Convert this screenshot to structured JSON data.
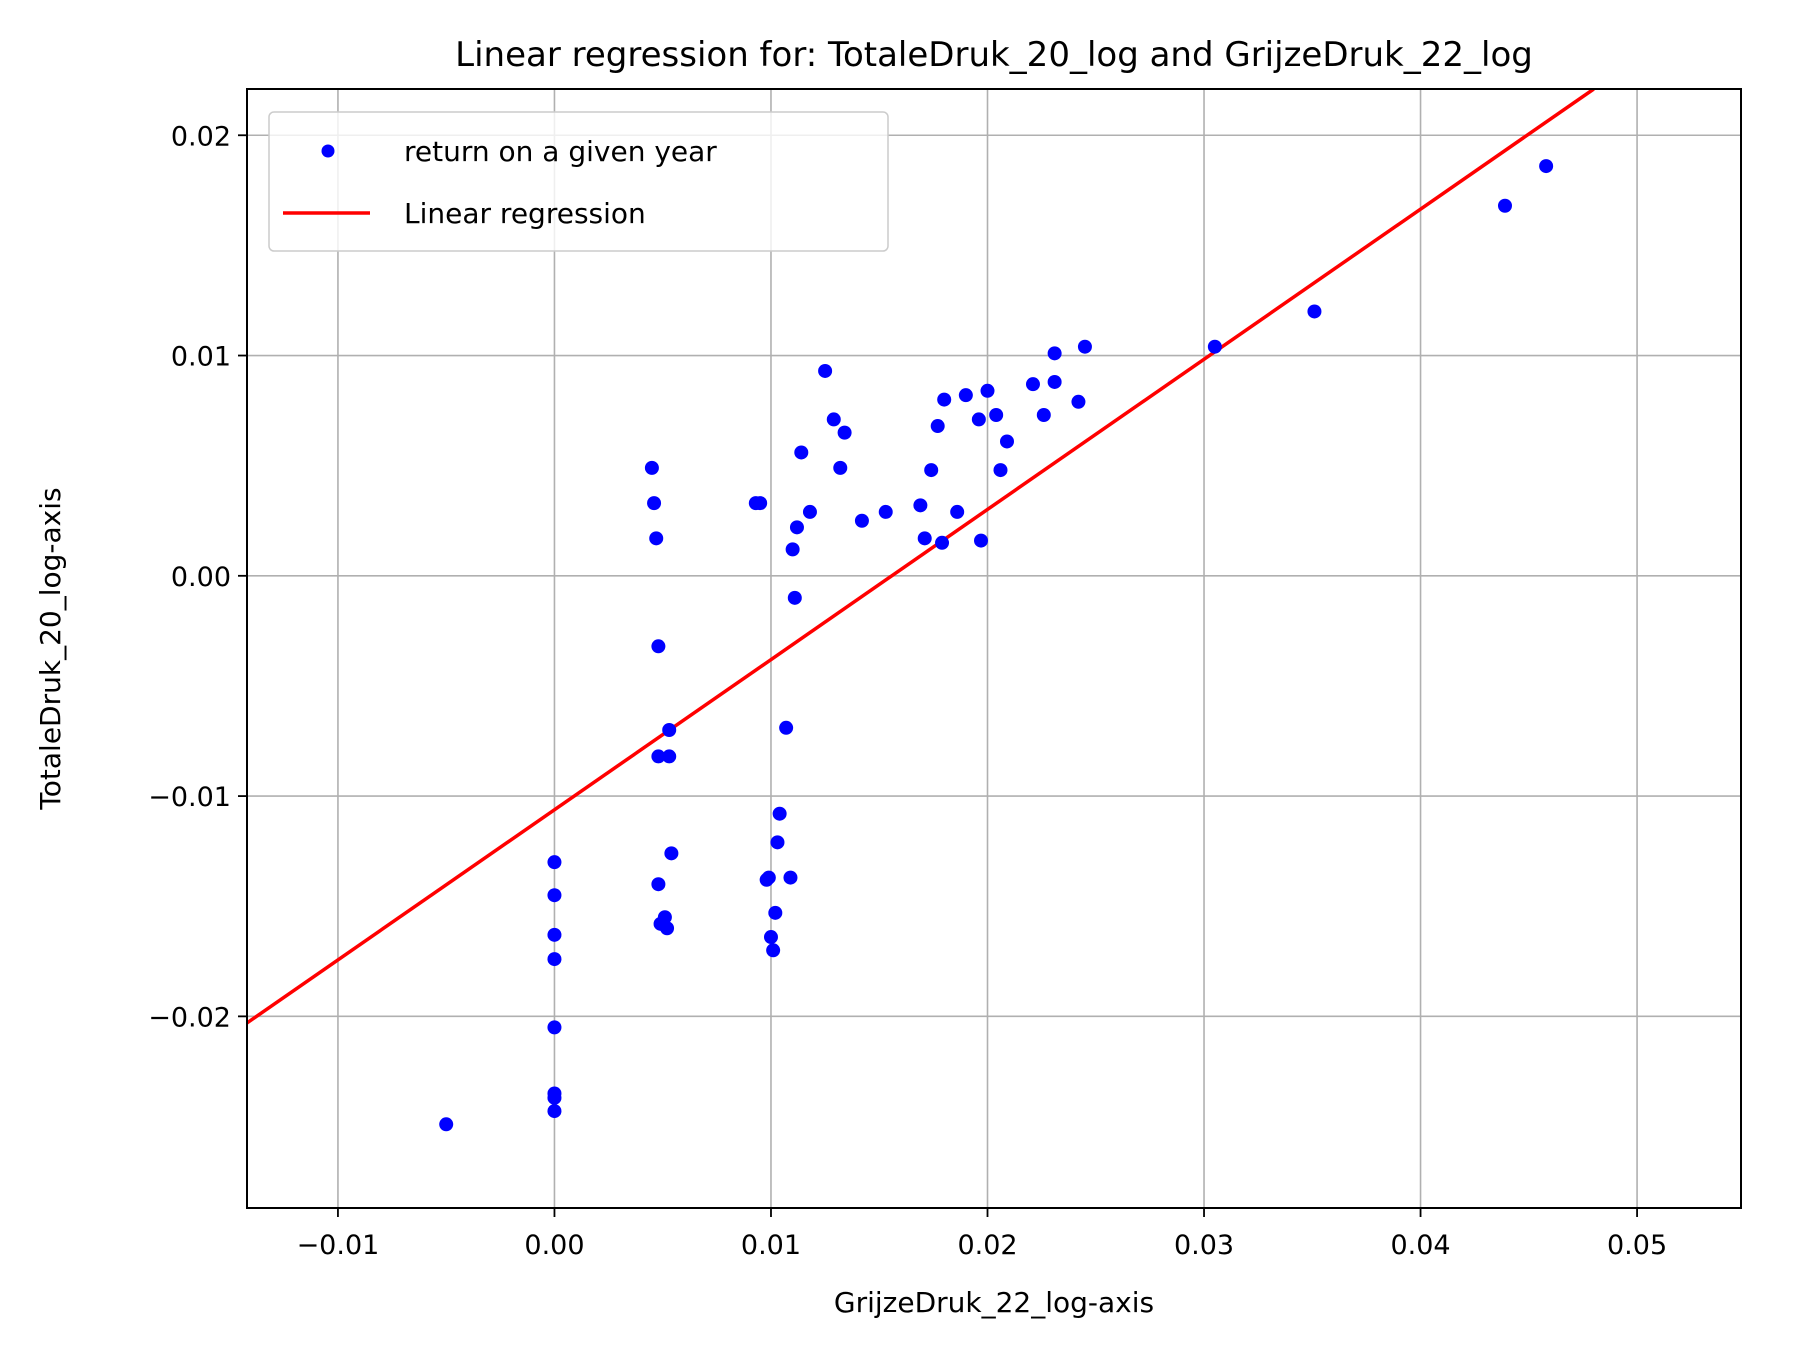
{
  "chart_data": {
    "type": "scatter",
    "title": "Linear regression for: TotaleDruk_20_log and GrijzeDruk_22_log",
    "xlabel": "GrijzeDruk_22_log-axis",
    "ylabel": "TotaleDruk_20_log-axis",
    "xlim": [
      -0.0142,
      0.0548
    ],
    "ylim": [
      -0.0287,
      0.0221
    ],
    "xticks": [
      -0.01,
      0.0,
      0.01,
      0.02,
      0.03,
      0.04,
      0.05
    ],
    "xtick_labels": [
      "−0.01",
      "0.00",
      "0.01",
      "0.02",
      "0.03",
      "0.04",
      "0.05"
    ],
    "yticks": [
      -0.02,
      -0.01,
      0.0,
      0.01,
      0.02
    ],
    "ytick_labels": [
      "−0.02",
      "−0.01",
      "0.00",
      "0.01",
      "0.02"
    ],
    "grid": true,
    "legend_position": "top-left",
    "series": [
      {
        "name": "return on a given year",
        "kind": "scatter",
        "color": "#0000ff",
        "points": [
          [
            -0.005,
            -0.0249
          ],
          [
            0.0,
            -0.013
          ],
          [
            0.0,
            -0.0145
          ],
          [
            0.0,
            -0.0163
          ],
          [
            0.0,
            -0.0174
          ],
          [
            0.0,
            -0.0205
          ],
          [
            0.0,
            -0.0235
          ],
          [
            0.0,
            -0.0237
          ],
          [
            0.0,
            -0.0243
          ],
          [
            0.0045,
            0.0049
          ],
          [
            0.0046,
            0.0033
          ],
          [
            0.0047,
            0.0017
          ],
          [
            0.0048,
            -0.0032
          ],
          [
            0.0048,
            -0.0082
          ],
          [
            0.0048,
            -0.014
          ],
          [
            0.0049,
            -0.0158
          ],
          [
            0.0051,
            -0.0155
          ],
          [
            0.0052,
            -0.016
          ],
          [
            0.0053,
            -0.007
          ],
          [
            0.0053,
            -0.0082
          ],
          [
            0.0054,
            -0.0126
          ],
          [
            0.0093,
            0.0033
          ],
          [
            0.0095,
            0.0033
          ],
          [
            0.0098,
            -0.0138
          ],
          [
            0.0099,
            -0.0137
          ],
          [
            0.01,
            -0.0164
          ],
          [
            0.0101,
            -0.017
          ],
          [
            0.0102,
            -0.0153
          ],
          [
            0.0103,
            -0.0121
          ],
          [
            0.0104,
            -0.0108
          ],
          [
            0.0107,
            -0.0069
          ],
          [
            0.0109,
            -0.0137
          ],
          [
            0.011,
            0.0012
          ],
          [
            0.0111,
            -0.001
          ],
          [
            0.0112,
            0.0022
          ],
          [
            0.0114,
            0.0056
          ],
          [
            0.0118,
            0.0029
          ],
          [
            0.0125,
            0.0093
          ],
          [
            0.0129,
            0.0071
          ],
          [
            0.0132,
            0.0049
          ],
          [
            0.0134,
            0.0065
          ],
          [
            0.0142,
            0.0025
          ],
          [
            0.0153,
            0.0029
          ],
          [
            0.0169,
            0.0032
          ],
          [
            0.0171,
            0.0017
          ],
          [
            0.0174,
            0.0048
          ],
          [
            0.0177,
            0.0068
          ],
          [
            0.0179,
            0.0015
          ],
          [
            0.018,
            0.008
          ],
          [
            0.0186,
            0.0029
          ],
          [
            0.019,
            0.0082
          ],
          [
            0.0196,
            0.0071
          ],
          [
            0.0197,
            0.0016
          ],
          [
            0.02,
            0.0084
          ],
          [
            0.0204,
            0.0073
          ],
          [
            0.0206,
            0.0048
          ],
          [
            0.0209,
            0.0061
          ],
          [
            0.0221,
            0.0087
          ],
          [
            0.0226,
            0.0073
          ],
          [
            0.0231,
            0.0101
          ],
          [
            0.0231,
            0.0088
          ],
          [
            0.0242,
            0.0079
          ],
          [
            0.0245,
            0.0104
          ],
          [
            0.0305,
            0.0104
          ],
          [
            0.0351,
            0.012
          ],
          [
            0.0439,
            0.0168
          ],
          [
            0.0458,
            0.0186
          ]
        ]
      },
      {
        "name": "Linear regression",
        "kind": "line",
        "color": "#ff0000",
        "points": [
          [
            -0.0142,
            -0.0203
          ],
          [
            0.048,
            0.0221
          ]
        ]
      }
    ]
  }
}
